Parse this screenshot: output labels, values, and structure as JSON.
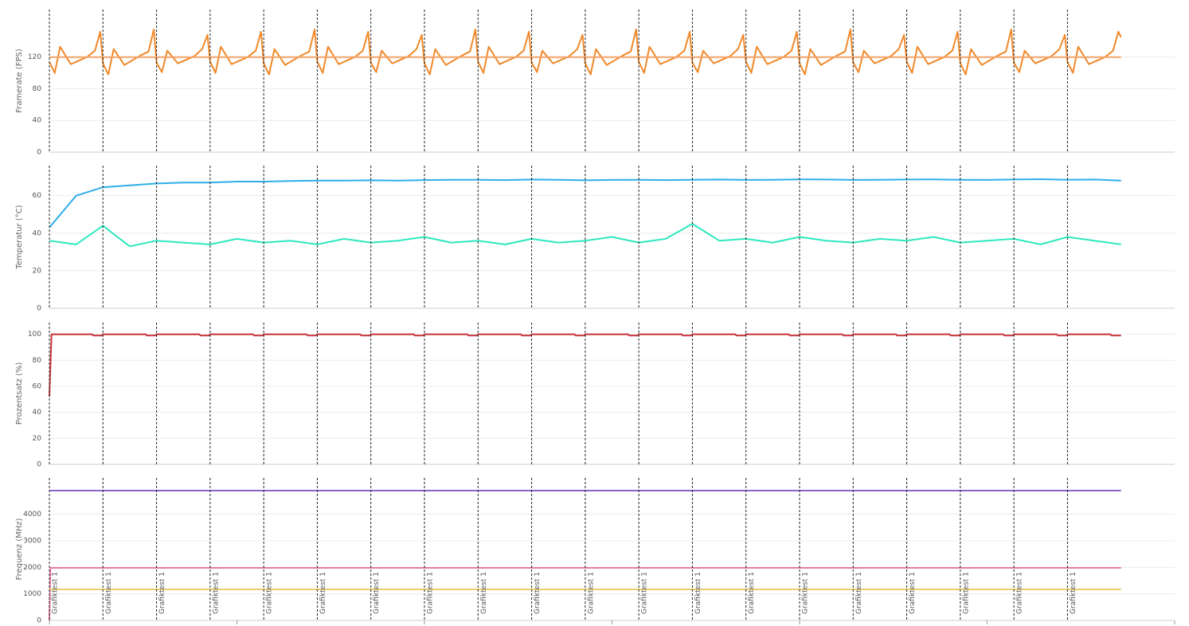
{
  "chart_data": [
    {
      "type": "line",
      "y_label": "Framerate (FPS)",
      "xlim": [
        0,
        21
      ],
      "ylim": [
        0,
        180
      ],
      "yticks": [
        0,
        40,
        80,
        120
      ],
      "grid": true,
      "markers": [
        0,
        1,
        2,
        3,
        4,
        5,
        6,
        7,
        8,
        9,
        10,
        11,
        12,
        13,
        14,
        15,
        16,
        17,
        18,
        19
      ],
      "series": [
        {
          "color": "#f0892a",
          "x": [
            0,
            0.1,
            0.2,
            0.4,
            0.7,
            0.85,
            0.95,
            1,
            1.1,
            1.2,
            1.4,
            1.7,
            1.85,
            1.95,
            2,
            2.1,
            2.2,
            2.4,
            2.7,
            2.85,
            2.95,
            3,
            3.1,
            3.2,
            3.4,
            3.7,
            3.85,
            3.95,
            4,
            4.1,
            4.2,
            4.4,
            4.7,
            4.85,
            4.95,
            5,
            5.1,
            5.2,
            5.4,
            5.7,
            5.85,
            5.95,
            6,
            6.1,
            6.2,
            6.4,
            6.7,
            6.85,
            6.95,
            7,
            7.1,
            7.2,
            7.4,
            7.7,
            7.85,
            7.95,
            8,
            8.1,
            8.2,
            8.4,
            8.7,
            8.85,
            8.95,
            9,
            9.1,
            9.2,
            9.4,
            9.7,
            9.85,
            9.95,
            10,
            10.1,
            10.2,
            10.4,
            10.7,
            10.85,
            10.95,
            11,
            11.1,
            11.2,
            11.4,
            11.7,
            11.85,
            11.95,
            12,
            12.1,
            12.2,
            12.4,
            12.7,
            12.85,
            12.95,
            13,
            13.1,
            13.2,
            13.4,
            13.7,
            13.85,
            13.95,
            14,
            14.1,
            14.2,
            14.4,
            14.7,
            14.85,
            14.95,
            15,
            15.1,
            15.2,
            15.4,
            15.7,
            15.85,
            15.95,
            16,
            16.1,
            16.2,
            16.4,
            16.7,
            16.85,
            16.95,
            17,
            17.1,
            17.2,
            17.4,
            17.7,
            17.85,
            17.95,
            18,
            18.1,
            18.2,
            18.4,
            18.7,
            18.85,
            18.95,
            19,
            19.1,
            19.2,
            19.4,
            19.7,
            19.85,
            19.95,
            20
          ],
          "values": [
            114,
            100,
            133,
            111,
            120,
            128,
            152,
            112,
            98,
            130,
            110,
            122,
            127,
            155,
            113,
            101,
            128,
            112,
            121,
            130,
            148,
            114,
            100,
            133,
            111,
            120,
            128,
            152,
            112,
            98,
            130,
            110,
            122,
            127,
            155,
            114,
            100,
            133,
            111,
            120,
            128,
            152,
            113,
            101,
            128,
            112,
            121,
            130,
            148,
            112,
            98,
            130,
            110,
            122,
            127,
            155,
            114,
            100,
            133,
            111,
            120,
            128,
            152,
            113,
            101,
            128,
            112,
            121,
            130,
            148,
            112,
            98,
            130,
            110,
            122,
            127,
            155,
            114,
            100,
            133,
            111,
            120,
            128,
            152,
            113,
            101,
            128,
            112,
            121,
            130,
            148,
            114,
            100,
            133,
            111,
            120,
            128,
            152,
            112,
            98,
            130,
            110,
            122,
            127,
            155,
            113,
            101,
            128,
            112,
            121,
            130,
            148,
            114,
            100,
            133,
            111,
            120,
            128,
            152,
            112,
            98,
            130,
            110,
            122,
            127,
            155,
            113,
            101,
            128,
            112,
            121,
            130,
            148,
            114,
            100,
            133,
            111,
            120,
            128,
            152,
            145
          ]
        },
        {
          "color": "#f5a46a",
          "x": [
            0,
            20
          ],
          "values": [
            120,
            120
          ]
        }
      ]
    },
    {
      "type": "line",
      "y_label": "Temperatur (°C)",
      "xlim": [
        0,
        21
      ],
      "ylim": [
        0,
        76
      ],
      "yticks": [
        0,
        20,
        40,
        60
      ],
      "grid": true,
      "markers": [
        0,
        1,
        2,
        3,
        4,
        5,
        6,
        7,
        8,
        9,
        10,
        11,
        12,
        13,
        14,
        15,
        16,
        17,
        18,
        19
      ],
      "series": [
        {
          "color": "#2eaee8",
          "x": [
            0,
            0.5,
            1,
            1.5,
            2,
            2.5,
            3,
            3.5,
            4,
            4.5,
            5,
            5.5,
            6,
            6.5,
            7,
            7.5,
            8,
            8.5,
            9,
            9.5,
            10,
            10.5,
            11,
            11.5,
            12,
            12.5,
            13,
            13.5,
            14,
            14.5,
            15,
            15.5,
            16,
            16.5,
            17,
            17.5,
            18,
            18.5,
            19,
            19.5,
            20
          ],
          "values": [
            43,
            60,
            64.5,
            65.5,
            66.5,
            67,
            67,
            67.5,
            67.5,
            67.8,
            68,
            68,
            68.2,
            68,
            68.3,
            68.5,
            68.5,
            68.3,
            68.6,
            68.5,
            68.2,
            68.4,
            68.5,
            68.3,
            68.5,
            68.6,
            68.4,
            68.5,
            68.7,
            68.6,
            68.4,
            68.5,
            68.6,
            68.7,
            68.5,
            68.4,
            68.6,
            68.8,
            68.5,
            68.6,
            68
          ]
        },
        {
          "color": "#2de8c0",
          "x": [
            0,
            0.5,
            1,
            1.5,
            2,
            2.5,
            3,
            3.5,
            4,
            4.5,
            5,
            5.5,
            6,
            6.5,
            7,
            7.5,
            8,
            8.5,
            9,
            9.5,
            10,
            10.5,
            11,
            11.5,
            12,
            12.5,
            13,
            13.5,
            14,
            14.5,
            15,
            15.5,
            16,
            16.5,
            17,
            17.5,
            18,
            18.5,
            19,
            19.5,
            20
          ],
          "values": [
            36,
            34,
            44,
            33,
            36,
            35,
            34,
            37,
            35,
            36,
            34,
            37,
            35,
            36,
            38,
            35,
            36,
            34,
            37,
            35,
            36,
            38,
            35,
            37,
            45,
            36,
            37,
            35,
            38,
            36,
            35,
            37,
            36,
            38,
            35,
            36,
            37,
            34,
            38,
            36,
            34
          ]
        }
      ]
    },
    {
      "type": "line",
      "y_label": "Prozentsatz (%)",
      "xlim": [
        0,
        21
      ],
      "ylim": [
        0,
        109
      ],
      "yticks": [
        0,
        20,
        40,
        60,
        80,
        100
      ],
      "grid": true,
      "markers": [
        0,
        1,
        2,
        3,
        4,
        5,
        6,
        7,
        8,
        9,
        10,
        11,
        12,
        13,
        14,
        15,
        16,
        17,
        18,
        19
      ],
      "series": [
        {
          "color": "#c8343a",
          "x": [
            0,
            0.04,
            0.8,
            0.82,
            0.98,
            1,
            1.8,
            1.82,
            1.98,
            2,
            2.8,
            2.82,
            2.98,
            3,
            3.8,
            3.82,
            3.98,
            4,
            4.8,
            4.82,
            4.98,
            5,
            5.8,
            5.82,
            5.98,
            6,
            6.8,
            6.82,
            6.98,
            7,
            7.8,
            7.82,
            7.98,
            8,
            8.8,
            8.82,
            8.98,
            9,
            9.8,
            9.82,
            9.98,
            10,
            10.8,
            10.82,
            10.98,
            11,
            11.8,
            11.82,
            11.98,
            12,
            12.8,
            12.82,
            12.98,
            13,
            13.8,
            13.82,
            13.98,
            14,
            14.8,
            14.82,
            14.98,
            15,
            15.8,
            15.82,
            15.98,
            16,
            16.8,
            16.82,
            16.98,
            17,
            17.8,
            17.82,
            17.98,
            18,
            18.8,
            18.82,
            18.98,
            19,
            19.8,
            19.82,
            19.98,
            20
          ],
          "values": [
            52,
            100,
            100,
            99,
            99,
            100,
            100,
            99,
            99,
            100,
            100,
            99,
            99,
            100,
            100,
            99,
            99,
            100,
            100,
            99,
            99,
            100,
            100,
            99,
            99,
            100,
            100,
            99,
            99,
            100,
            100,
            99,
            99,
            100,
            100,
            99,
            99,
            100,
            100,
            99,
            99,
            100,
            100,
            99,
            99,
            100,
            100,
            99,
            99,
            100,
            100,
            99,
            99,
            100,
            100,
            99,
            99,
            100,
            100,
            99,
            99,
            100,
            100,
            99,
            99,
            100,
            100,
            99,
            99,
            100,
            100,
            99,
            99,
            100,
            100,
            99,
            99,
            100,
            100,
            99,
            99,
            99
          ]
        }
      ]
    },
    {
      "type": "line",
      "y_label": "Frequenz (MHz)",
      "xlim": [
        0,
        21
      ],
      "xticks": [
        0,
        3.5,
        7,
        10.5,
        14,
        17.5,
        21
      ],
      "ylim": [
        0,
        5370
      ],
      "yticks": [
        0,
        1000,
        2000,
        3000,
        4000
      ],
      "grid": true,
      "markers": [
        0,
        1,
        2,
        3,
        4,
        5,
        6,
        7,
        8,
        9,
        10,
        11,
        12,
        13,
        14,
        15,
        16,
        17,
        18,
        19
      ],
      "marker_labels": [
        "Grafiktest 1",
        "Grafiktest 1",
        "Grafiktest 1",
        "Grafiktest 1",
        "Grafiktest 1",
        "Grafiktest 1",
        "Grafiktest 1",
        "Grafiktest 1",
        "Grafiktest 1",
        "Grafiktest 1",
        "Grafiktest 1",
        "Grafiktest 1",
        "Grafiktest 1",
        "Grafiktest 1",
        "Grafiktest 1",
        "Grafiktest 1",
        "Grafiktest 1",
        "Grafiktest 1",
        "Grafiktest 1",
        "Grafiktest 1"
      ],
      "series": [
        {
          "color": "#8a63c9",
          "x": [
            0,
            20
          ],
          "values": [
            4890,
            4890
          ]
        },
        {
          "color": "#e87aa8",
          "x": [
            0,
            0.02,
            20
          ],
          "values": [
            0,
            1980,
            1980
          ]
        },
        {
          "color": "#e8cd6a",
          "x": [
            0,
            20
          ],
          "values": [
            1170,
            1170
          ]
        }
      ]
    }
  ]
}
